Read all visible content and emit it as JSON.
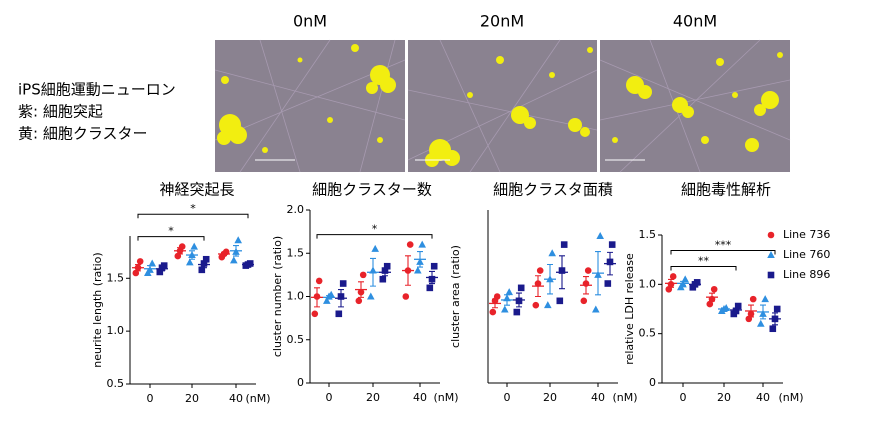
{
  "figure": {
    "description": [
      "iPS細胞運動ニューロン",
      "紫: 細胞突起",
      "黄: 細胞クラスター"
    ],
    "images": [
      {
        "label": "0nM"
      },
      {
        "label": "20nM"
      },
      {
        "label": "40nM"
      }
    ]
  },
  "chart_data": [
    {
      "type": "dot",
      "title": "神経突起長",
      "ylabel": "neurite length (ratio)",
      "xlabel": "(nM)",
      "categories": [
        0,
        20,
        40
      ],
      "ylim": [
        0.5,
        1.9
      ],
      "yticks": [
        0.5,
        {
          "value": 1,
          "label": "1.0"
        },
        1.5
      ],
      "significance": [
        {
          "pair": [
            0,
            20
          ],
          "label": "*"
        },
        {
          "pair": [
            0,
            40
          ],
          "label": "*"
        }
      ],
      "series": [
        {
          "color": "#e8232a",
          "marker": "circle",
          "values": [
            [
              1.55,
              1.6,
              1.66
            ],
            [
              1.71,
              1.76,
              1.8
            ],
            [
              1.7,
              1.73,
              1.75
            ]
          ],
          "mean": [
            1.6,
            1.76,
            1.73
          ],
          "sem": [
            0.03,
            0.03,
            0.015
          ]
        },
        {
          "color": "#2e8fe0",
          "marker": "triangle",
          "values": [
            [
              1.55,
              1.58,
              1.64
            ],
            [
              1.65,
              1.72,
              1.8
            ],
            [
              1.67,
              1.75,
              1.86
            ]
          ],
          "mean": [
            1.59,
            1.72,
            1.76
          ],
          "sem": [
            0.03,
            0.04,
            0.05
          ]
        },
        {
          "color": "#1a1a8c",
          "marker": "square",
          "values": [
            [
              1.56,
              1.6,
              1.62
            ],
            [
              1.58,
              1.64,
              1.68
            ],
            [
              1.62,
              1.63,
              1.64
            ]
          ],
          "mean": [
            1.59,
            1.63,
            1.63
          ],
          "sem": [
            0.02,
            0.03,
            0.01
          ]
        }
      ]
    },
    {
      "type": "dot",
      "title": "細胞クラスター数",
      "ylabel": "cluster number (ratio)",
      "xlabel": "(nM)",
      "categories": [
        0,
        20,
        40
      ],
      "ylim": [
        0,
        2
      ],
      "yticks": [
        0,
        0.5,
        {
          "value": 1,
          "label": "1.0"
        },
        1.5,
        {
          "value": 2,
          "label": "2.0"
        }
      ],
      "significance": [
        {
          "pair": [
            0,
            40
          ],
          "label": "*"
        }
      ],
      "series": [
        {
          "color": "#e8232a",
          "marker": "circle",
          "values": [
            [
              0.8,
              1.0,
              1.18
            ],
            [
              0.95,
              1.05,
              1.25
            ],
            [
              1.0,
              1.3,
              1.6
            ]
          ],
          "mean": [
            0.99,
            1.08,
            1.3
          ],
          "sem": [
            0.11,
            0.09,
            0.17
          ]
        },
        {
          "color": "#2e8fe0",
          "marker": "triangle",
          "values": [
            [
              0.95,
              1.0,
              1.02
            ],
            [
              1.0,
              1.3,
              1.55
            ],
            [
              1.3,
              1.4,
              1.6
            ]
          ],
          "mean": [
            0.99,
            1.28,
            1.43
          ],
          "sem": [
            0.02,
            0.16,
            0.09
          ]
        },
        {
          "color": "#1a1a8c",
          "marker": "square",
          "values": [
            [
              0.8,
              1.0,
              1.15
            ],
            [
              1.2,
              1.3,
              1.35
            ],
            [
              1.1,
              1.2,
              1.35
            ]
          ],
          "mean": [
            0.98,
            1.28,
            1.22
          ],
          "sem": [
            0.1,
            0.04,
            0.07
          ]
        }
      ]
    },
    {
      "type": "dot",
      "title": "細胞クラスタ面積",
      "ylabel": "cluster area (ratio)",
      "xlabel": "(nM)",
      "categories": [
        0,
        20,
        40
      ],
      "ylim": [
        0,
        2
      ],
      "series": [
        {
          "color": "#e8232a",
          "marker": "circle",
          "values": [
            [
              0.82,
              0.95,
              1.0
            ],
            [
              0.9,
              1.15,
              1.3
            ],
            [
              0.95,
              1.15,
              1.3
            ]
          ],
          "mean": [
            0.92,
            1.12,
            1.13
          ],
          "sem": [
            0.05,
            0.12,
            0.1
          ]
        },
        {
          "color": "#2e8fe0",
          "marker": "triangle",
          "values": [
            [
              0.85,
              0.98,
              1.05
            ],
            [
              0.9,
              1.2,
              1.5
            ],
            [
              0.85,
              1.25,
              1.7
            ]
          ],
          "mean": [
            0.96,
            1.2,
            1.27
          ],
          "sem": [
            0.06,
            0.17,
            0.25
          ]
        },
        {
          "color": "#1a1a8c",
          "marker": "square",
          "values": [
            [
              0.82,
              0.95,
              1.1
            ],
            [
              0.95,
              1.3,
              1.6
            ],
            [
              1.15,
              1.4,
              1.6
            ]
          ],
          "mean": [
            0.96,
            1.28,
            1.38
          ],
          "sem": [
            0.08,
            0.19,
            0.13
          ]
        }
      ]
    },
    {
      "type": "dot",
      "title": "細胞毒性解析",
      "ylabel": "relative LDH release",
      "xlabel": "(nM)",
      "categories": [
        0,
        20,
        40
      ],
      "ylim": [
        0,
        1.5
      ],
      "yticks": [
        0,
        0.5,
        {
          "value": 1,
          "label": "1.0"
        },
        1.5
      ],
      "significance": [
        {
          "pair": [
            0,
            20
          ],
          "label": "**"
        },
        {
          "pair": [
            0,
            40
          ],
          "label": "***"
        }
      ],
      "legend": "right",
      "series": [
        {
          "name": "Line 736",
          "color": "#e8232a",
          "marker": "circle",
          "values": [
            [
              0.95,
              1.0,
              1.08
            ],
            [
              0.8,
              0.85,
              0.95
            ],
            [
              0.65,
              0.7,
              0.85
            ]
          ],
          "mean": [
            1.01,
            0.87,
            0.73
          ],
          "sem": [
            0.04,
            0.04,
            0.06
          ]
        },
        {
          "name": "Line 760",
          "color": "#2e8fe0",
          "marker": "triangle",
          "values": [
            [
              0.97,
              1.0,
              1.05
            ],
            [
              0.73,
              0.75,
              0.76
            ],
            [
              0.6,
              0.7,
              0.85
            ]
          ],
          "mean": [
            1.01,
            0.75,
            0.72
          ],
          "sem": [
            0.02,
            0.01,
            0.07
          ]
        },
        {
          "name": "Line 896",
          "color": "#1a1a8c",
          "marker": "square",
          "values": [
            [
              0.97,
              1.0,
              1.02
            ],
            [
              0.7,
              0.73,
              0.78
            ],
            [
              0.55,
              0.65,
              0.75
            ]
          ],
          "mean": [
            1.0,
            0.74,
            0.65
          ],
          "sem": [
            0.01,
            0.02,
            0.06
          ]
        }
      ]
    }
  ]
}
